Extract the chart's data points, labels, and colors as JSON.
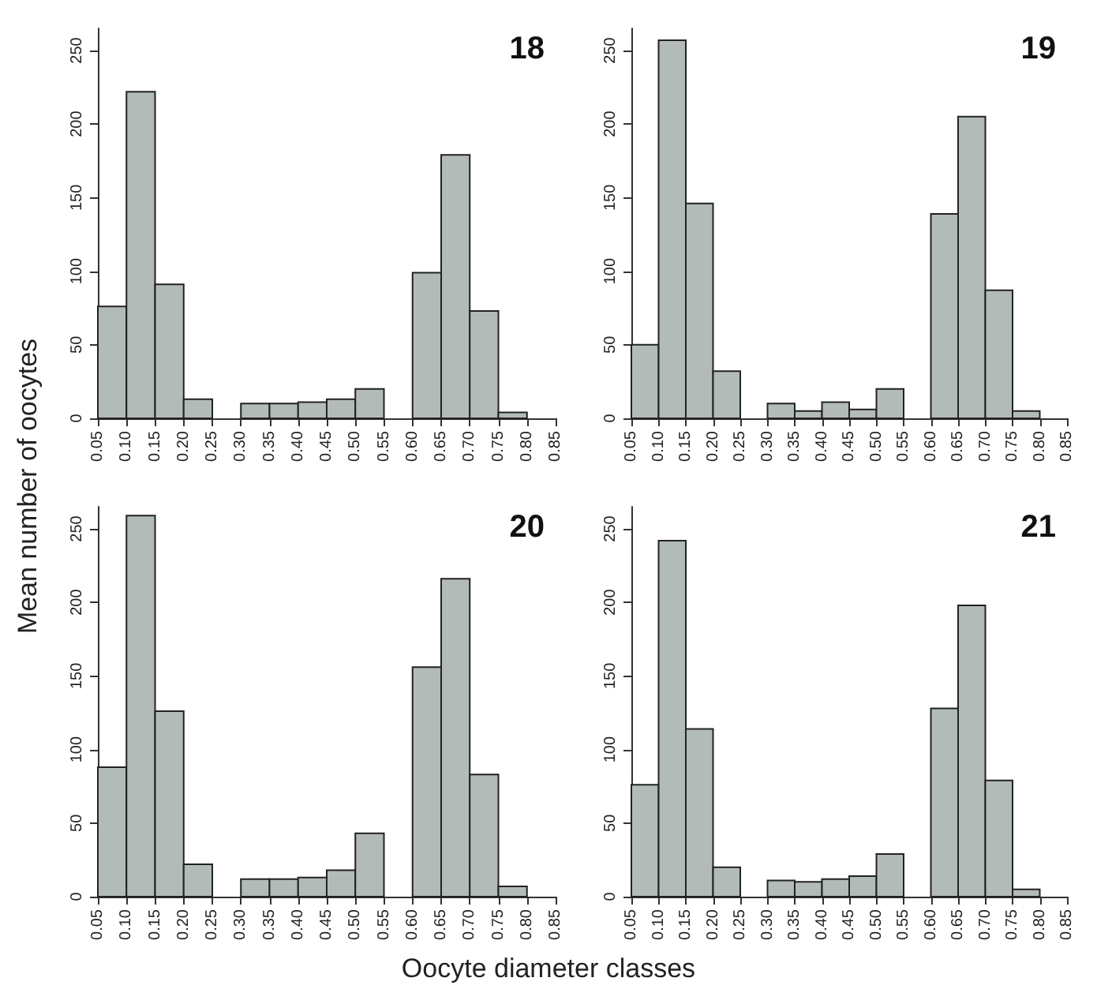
{
  "chart_data": [
    {
      "type": "histogram",
      "title": "18",
      "ylabel": "Mean number of oocytes",
      "color": "#b3bbb9",
      "bins": [
        0.05,
        0.1,
        0.15,
        0.2,
        0.25,
        0.3,
        0.35,
        0.4,
        0.45,
        0.5,
        0.55,
        0.6,
        0.65,
        0.7,
        0.75,
        0.8
      ],
      "values": [
        76,
        222,
        91,
        13,
        0,
        10,
        10,
        11,
        13,
        20,
        0,
        99,
        179,
        73,
        4
      ],
      "xlim": [
        0.05,
        0.85
      ],
      "xticks": [
        {
          "value": 0.05,
          "label": "0.05"
        },
        {
          "value": 0.1,
          "label": "0.10"
        },
        {
          "value": 0.15,
          "label": "0.15"
        },
        {
          "value": 0.2,
          "label": "0.20"
        },
        {
          "value": 0.25,
          "label": "0.25"
        },
        {
          "value": 0.3,
          "label": "0.30"
        },
        {
          "value": 0.35,
          "label": "0.35"
        },
        {
          "value": 0.4,
          "label": "0.40"
        },
        {
          "value": 0.45,
          "label": "0.45"
        },
        {
          "value": 0.5,
          "label": "0.50"
        },
        {
          "value": 0.55,
          "label": "0.55"
        },
        {
          "value": 0.6,
          "label": "0.60"
        },
        {
          "value": 0.65,
          "label": "0.65"
        },
        {
          "value": 0.7,
          "label": "0.70"
        },
        {
          "value": 0.75,
          "label": "0.75"
        },
        {
          "value": 0.8,
          "label": "0.80"
        },
        {
          "value": 0.85,
          "label": "0.85"
        }
      ],
      "ylim": [
        0,
        265
      ],
      "yticks": [
        0,
        50,
        100,
        150,
        200,
        250
      ],
      "grid": false
    },
    {
      "type": "histogram",
      "title": "19",
      "color": "#b3bbb9",
      "bins": [
        0.05,
        0.1,
        0.15,
        0.2,
        0.25,
        0.3,
        0.35,
        0.4,
        0.45,
        0.5,
        0.55,
        0.6,
        0.65,
        0.7,
        0.75,
        0.8
      ],
      "values": [
        50,
        257,
        146,
        32,
        0,
        10,
        5,
        11,
        6,
        20,
        0,
        139,
        205,
        87,
        5
      ],
      "xlim": [
        0.05,
        0.85
      ],
      "xticks": [
        {
          "value": 0.05,
          "label": "0.05"
        },
        {
          "value": 0.1,
          "label": "0.10"
        },
        {
          "value": 0.15,
          "label": "0.15"
        },
        {
          "value": 0.2,
          "label": "0.20"
        },
        {
          "value": 0.25,
          "label": "0.25"
        },
        {
          "value": 0.3,
          "label": "0.30"
        },
        {
          "value": 0.35,
          "label": "0.35"
        },
        {
          "value": 0.4,
          "label": "0.40"
        },
        {
          "value": 0.45,
          "label": "0.45"
        },
        {
          "value": 0.5,
          "label": "0.50"
        },
        {
          "value": 0.55,
          "label": "0.55"
        },
        {
          "value": 0.6,
          "label": "0.60"
        },
        {
          "value": 0.65,
          "label": "0.65"
        },
        {
          "value": 0.7,
          "label": "0.70"
        },
        {
          "value": 0.75,
          "label": "0.75"
        },
        {
          "value": 0.8,
          "label": "0.80"
        },
        {
          "value": 0.85,
          "label": "0.85"
        }
      ],
      "ylim": [
        0,
        265
      ],
      "yticks": [
        0,
        50,
        100,
        150,
        200,
        250
      ],
      "grid": false
    },
    {
      "type": "histogram",
      "title": "20",
      "xlabel": "Oocyte diameter classes",
      "color": "#b3bbb9",
      "bins": [
        0.05,
        0.1,
        0.15,
        0.2,
        0.25,
        0.3,
        0.35,
        0.4,
        0.45,
        0.5,
        0.55,
        0.6,
        0.65,
        0.7,
        0.75,
        0.8
      ],
      "values": [
        88,
        259,
        126,
        22,
        0,
        12,
        12,
        13,
        18,
        43,
        0,
        156,
        216,
        83,
        7
      ],
      "xlim": [
        0.05,
        0.85
      ],
      "xticks": [
        {
          "value": 0.05,
          "label": "0.05"
        },
        {
          "value": 0.1,
          "label": "0.10"
        },
        {
          "value": 0.15,
          "label": "0.15"
        },
        {
          "value": 0.2,
          "label": "0.20"
        },
        {
          "value": 0.25,
          "label": "0.25"
        },
        {
          "value": 0.3,
          "label": "0.30"
        },
        {
          "value": 0.35,
          "label": "0.35"
        },
        {
          "value": 0.4,
          "label": "0.40"
        },
        {
          "value": 0.45,
          "label": "0.45"
        },
        {
          "value": 0.5,
          "label": "0.50"
        },
        {
          "value": 0.55,
          "label": "0.55"
        },
        {
          "value": 0.6,
          "label": "0.60"
        },
        {
          "value": 0.65,
          "label": "0.65"
        },
        {
          "value": 0.7,
          "label": "0.70"
        },
        {
          "value": 0.75,
          "label": "0.75"
        },
        {
          "value": 0.8,
          "label": "0.80"
        },
        {
          "value": 0.85,
          "label": "0.85"
        }
      ],
      "ylim": [
        0,
        265
      ],
      "yticks": [
        0,
        50,
        100,
        150,
        200,
        250
      ],
      "grid": false
    },
    {
      "type": "histogram",
      "title": "21",
      "color": "#b3bbb9",
      "bins": [
        0.05,
        0.1,
        0.15,
        0.2,
        0.25,
        0.3,
        0.35,
        0.4,
        0.45,
        0.5,
        0.55,
        0.6,
        0.65,
        0.7,
        0.75,
        0.8
      ],
      "values": [
        76,
        242,
        114,
        20,
        0,
        11,
        10,
        12,
        14,
        29,
        0,
        128,
        198,
        79,
        5
      ],
      "xlim": [
        0.05,
        0.85
      ],
      "xticks": [
        {
          "value": 0.05,
          "label": "0.05"
        },
        {
          "value": 0.1,
          "label": "0.10"
        },
        {
          "value": 0.15,
          "label": "0.15"
        },
        {
          "value": 0.2,
          "label": "0.20"
        },
        {
          "value": 0.25,
          "label": "0.25"
        },
        {
          "value": 0.3,
          "label": "0.30"
        },
        {
          "value": 0.35,
          "label": "0.35"
        },
        {
          "value": 0.4,
          "label": "0.40"
        },
        {
          "value": 0.45,
          "label": "0.45"
        },
        {
          "value": 0.5,
          "label": "0.50"
        },
        {
          "value": 0.55,
          "label": "0.55"
        },
        {
          "value": 0.6,
          "label": "0.60"
        },
        {
          "value": 0.65,
          "label": "0.65"
        },
        {
          "value": 0.7,
          "label": "0.70"
        },
        {
          "value": 0.75,
          "label": "0.75"
        },
        {
          "value": 0.8,
          "label": "0.80"
        },
        {
          "value": 0.85,
          "label": "0.85"
        }
      ],
      "ylim": [
        0,
        265
      ],
      "yticks": [
        0,
        50,
        100,
        150,
        200,
        250
      ],
      "grid": false
    }
  ]
}
